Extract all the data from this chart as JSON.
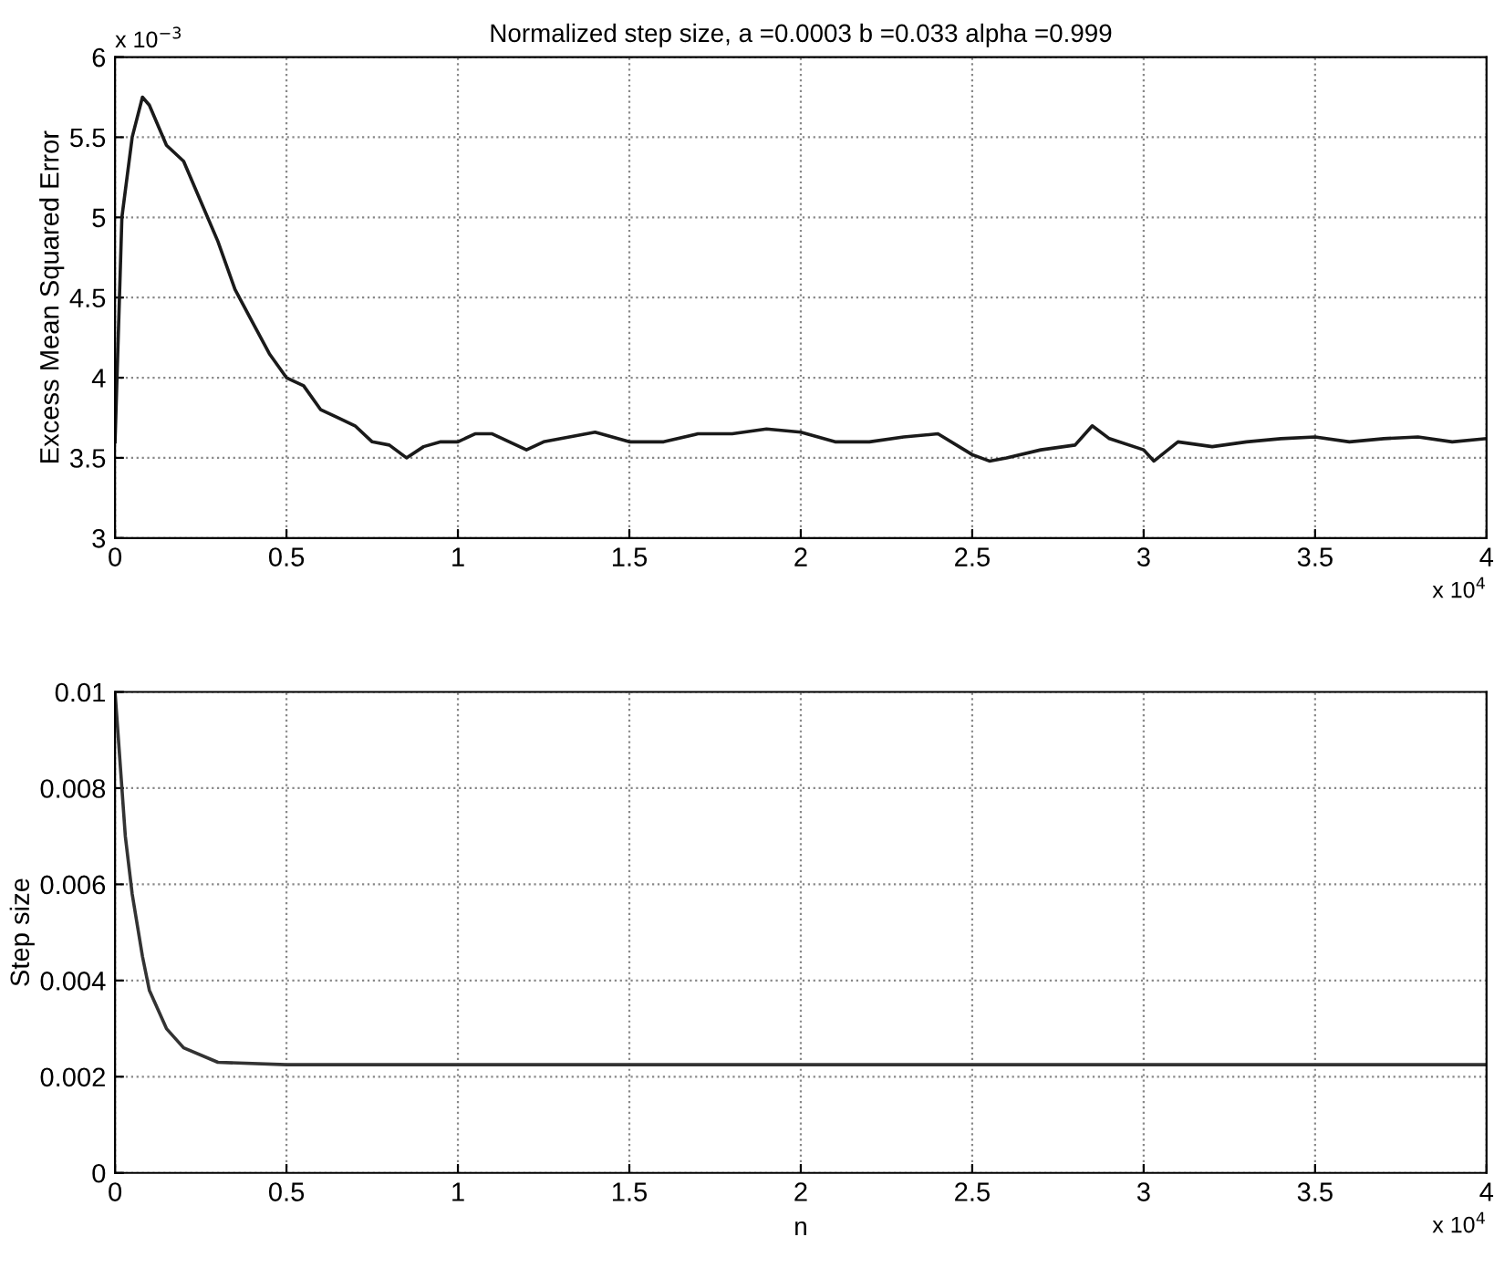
{
  "chart_data": [
    {
      "type": "line",
      "title": "Normalized step size, a =0.0003 b =0.033 alpha =0.999",
      "ylabel": "Excess Mean Squared Error",
      "grid": true,
      "line_style": "solid",
      "marker": "none",
      "x": [
        0,
        0.02,
        0.05,
        0.08,
        0.1,
        0.15,
        0.2,
        0.25,
        0.3,
        0.35,
        0.4,
        0.45,
        0.5,
        0.55,
        0.6,
        0.65,
        0.7,
        0.75,
        0.8,
        0.85,
        0.9,
        0.95,
        1,
        1.05,
        1.1,
        1.2,
        1.25,
        1.3,
        1.4,
        1.5,
        1.6,
        1.7,
        1.8,
        1.9,
        2,
        2.1,
        2.2,
        2.3,
        2.4,
        2.5,
        2.55,
        2.6,
        2.7,
        2.8,
        2.85,
        2.9,
        3,
        3.03,
        3.1,
        3.2,
        3.3,
        3.4,
        3.5,
        3.6,
        3.7,
        3.8,
        3.9,
        4
      ],
      "series": [
        {
          "color": "#1a1a1a",
          "values": [
            3.6,
            5.0,
            5.5,
            5.75,
            5.7,
            5.45,
            5.35,
            5.1,
            4.85,
            4.55,
            4.35,
            4.15,
            4.0,
            3.95,
            3.8,
            3.75,
            3.7,
            3.6,
            3.58,
            3.5,
            3.57,
            3.6,
            3.6,
            3.65,
            3.65,
            3.55,
            3.6,
            3.62,
            3.66,
            3.6,
            3.6,
            3.65,
            3.65,
            3.68,
            3.66,
            3.6,
            3.6,
            3.63,
            3.65,
            3.52,
            3.48,
            3.5,
            3.55,
            3.58,
            3.7,
            3.62,
            3.55,
            3.48,
            3.6,
            3.57,
            3.6,
            3.62,
            3.63,
            3.6,
            3.62,
            3.63,
            3.6,
            3.62
          ]
        }
      ],
      "xlim": [
        0,
        4
      ],
      "xticks": [
        0,
        0.5,
        1,
        1.5,
        2,
        2.5,
        3,
        3.5,
        4
      ],
      "ylim": [
        3,
        6
      ],
      "yticks": [
        3,
        3.5,
        4,
        4.5,
        5,
        5.5,
        6
      ],
      "annotations": [
        "x 10$^{−3}$",
        "x 10$^{4}$"
      ]
    },
    {
      "type": "line",
      "xlabel": "n",
      "ylabel": "Step size",
      "grid": true,
      "line_style": "solid",
      "marker": "none",
      "x": [
        0,
        0.01,
        0.03,
        0.05,
        0.08,
        0.1,
        0.15,
        0.2,
        0.3,
        0.5,
        1,
        2,
        3,
        4
      ],
      "series": [
        {
          "color": "#333333",
          "values": [
            0.01,
            0.009,
            0.007,
            0.0058,
            0.0045,
            0.0038,
            0.003,
            0.0026,
            0.0023,
            0.00225,
            0.00225,
            0.00225,
            0.00225,
            0.00225
          ]
        }
      ],
      "xlim": [
        0,
        4
      ],
      "xticks": [
        0,
        0.5,
        1,
        1.5,
        2,
        2.5,
        3,
        3.5,
        4
      ],
      "ylim": [
        0,
        0.01
      ],
      "yticks": [
        0,
        0.002,
        0.004,
        0.006,
        0.008,
        0.01
      ],
      "annotations": [
        "x 10$^{4}$"
      ]
    }
  ]
}
